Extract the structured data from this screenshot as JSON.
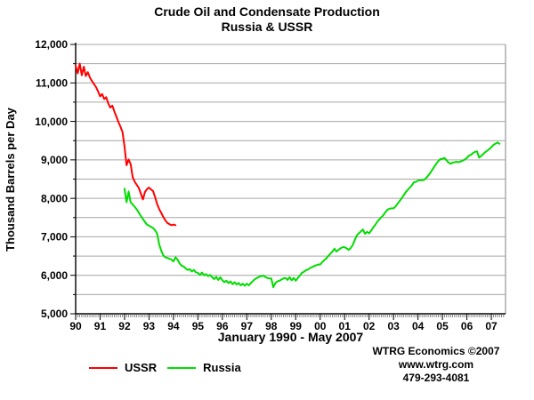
{
  "page": {
    "title_line1": "Crude Oil and Condensate Production",
    "title_line2": "Russia & USSR"
  },
  "chart_data": {
    "type": "line",
    "title": "Crude Oil and Condensate Production",
    "subtitle": "Russia & USSR",
    "ylabel": "Thousand Barrels per Day",
    "xlabel": "January 1990 - May 2007",
    "ylim": [
      5000,
      12000
    ],
    "ytick_step": 1000,
    "grid_step": 500,
    "grid_on": true,
    "grid_color": "#a6a6a6",
    "axis_color": "#000000",
    "x_domain_years": [
      1990,
      2007.58
    ],
    "x_data_end": 2007.417,
    "xtick_labels": [
      "90",
      "91",
      "92",
      "93",
      "94",
      "95",
      "96",
      "97",
      "98",
      "99",
      "00",
      "01",
      "02",
      "03",
      "04",
      "05",
      "06",
      "07"
    ],
    "legend_position": "bottom-left",
    "series": [
      {
        "name": "USSR",
        "color": "#ff0000",
        "start_year": 1990.0,
        "interval": "monthly",
        "values": [
          11450,
          11250,
          11500,
          11200,
          11420,
          11180,
          11280,
          11140,
          11050,
          10970,
          10890,
          10780,
          10650,
          10710,
          10580,
          10630,
          10470,
          10360,
          10410,
          10260,
          10120,
          9980,
          9860,
          9720,
          9350,
          8860,
          9010,
          8890,
          8550,
          8430,
          8350,
          8270,
          8120,
          7970,
          8160,
          8240,
          8280,
          8230,
          8190,
          8030,
          7850,
          7720,
          7620,
          7520,
          7430,
          7360,
          7330,
          7300,
          7320,
          7300
        ]
      },
      {
        "name": "Russia",
        "color": "#00dd00",
        "start_year": 1992.0,
        "interval": "monthly",
        "values": [
          8250,
          7900,
          8180,
          7900,
          7840,
          7780,
          7710,
          7630,
          7540,
          7460,
          7390,
          7320,
          7290,
          7260,
          7230,
          7170,
          7080,
          6800,
          6640,
          6520,
          6470,
          6450,
          6430,
          6410,
          6360,
          6470,
          6410,
          6310,
          6250,
          6230,
          6180,
          6140,
          6160,
          6100,
          6140,
          6080,
          6060,
          6010,
          6070,
          6000,
          6030,
          5980,
          6010,
          5950,
          5900,
          5960,
          5880,
          5950,
          5870,
          5820,
          5860,
          5800,
          5840,
          5770,
          5820,
          5760,
          5800,
          5740,
          5780,
          5730,
          5780,
          5740,
          5800,
          5850,
          5900,
          5930,
          5960,
          5980,
          5990,
          5960,
          5930,
          5920,
          5920,
          5690,
          5800,
          5840,
          5860,
          5890,
          5920,
          5930,
          5880,
          5950,
          5870,
          5930,
          5860,
          5930,
          5990,
          6060,
          6090,
          6130,
          6150,
          6190,
          6210,
          6240,
          6260,
          6280,
          6280,
          6340,
          6390,
          6440,
          6500,
          6560,
          6620,
          6690,
          6620,
          6660,
          6700,
          6730,
          6730,
          6700,
          6660,
          6710,
          6790,
          6920,
          7040,
          7090,
          7140,
          7190,
          7080,
          7130,
          7090,
          7160,
          7240,
          7310,
          7390,
          7450,
          7510,
          7560,
          7640,
          7700,
          7730,
          7740,
          7740,
          7790,
          7860,
          7930,
          8000,
          8080,
          8160,
          8220,
          8280,
          8340,
          8420,
          8430,
          8460,
          8470,
          8470,
          8480,
          8530,
          8590,
          8660,
          8740,
          8820,
          8900,
          8970,
          9020,
          9030,
          9050,
          8990,
          8930,
          8900,
          8930,
          8940,
          8950,
          8940,
          8960,
          8980,
          9010,
          9050,
          9110,
          9130,
          9180,
          9210,
          9220,
          9060,
          9100,
          9150,
          9200,
          9240,
          9280,
          9330,
          9390,
          9420,
          9450,
          9420
        ]
      }
    ]
  },
  "legend": {
    "items": [
      {
        "label": "USSR",
        "color": "#ff0000"
      },
      {
        "label": "Russia",
        "color": "#00dd00"
      }
    ]
  },
  "footer": {
    "line1": "WTRG Economics  ©2007",
    "line2": "www.wtrg.com",
    "line3": "479-293-4081"
  }
}
